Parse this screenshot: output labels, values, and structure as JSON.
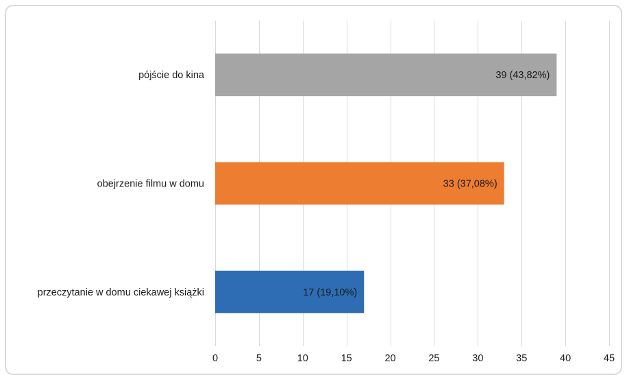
{
  "chart_data": {
    "type": "bar",
    "orientation": "horizontal",
    "categories": [
      "pójście do kina",
      "obejrzenie filmu w domu",
      "przeczytanie w domu ciekawej książki"
    ],
    "values": [
      39,
      33,
      17
    ],
    "data_labels": [
      "39 (43,82%)",
      "33 (37,08%)",
      "17 (19,10%)"
    ],
    "colors": [
      "#a5a5a5",
      "#ed7d31",
      "#2e6db4"
    ],
    "xlim": [
      0,
      45
    ],
    "xticks": [
      0,
      5,
      10,
      15,
      20,
      25,
      30,
      35,
      40,
      45
    ],
    "grid": "vertical",
    "legend": "none"
  }
}
